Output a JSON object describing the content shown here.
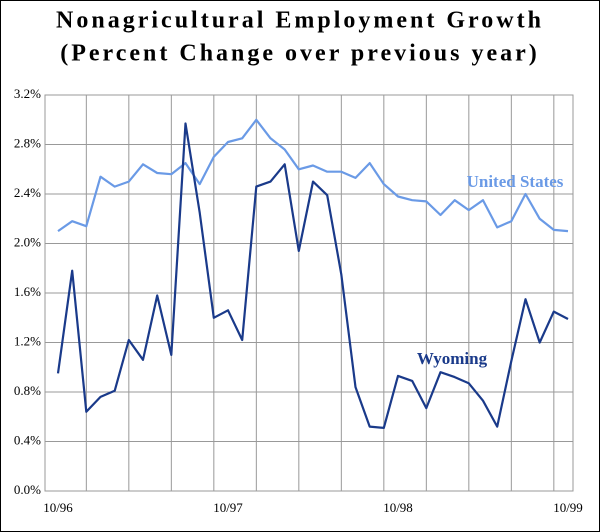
{
  "chart_data": {
    "type": "line",
    "title": "Nonagricultural Employment Growth",
    "subtitle": "(Percent Change over previous year)",
    "categories": [
      "10/96",
      null,
      null,
      null,
      null,
      null,
      null,
      null,
      null,
      null,
      null,
      null,
      "10/97",
      null,
      null,
      null,
      null,
      null,
      null,
      null,
      null,
      null,
      null,
      null,
      "10/98",
      null,
      null,
      null,
      null,
      null,
      null,
      null,
      null,
      null,
      null,
      null,
      "10/99"
    ],
    "series": [
      {
        "name": "United States",
        "color": "#6a9ae6",
        "values": [
          2.1,
          2.18,
          2.14,
          2.54,
          2.46,
          2.5,
          2.64,
          2.57,
          2.56,
          2.65,
          2.48,
          2.7,
          2.82,
          2.85,
          3.0,
          2.85,
          2.76,
          2.6,
          2.63,
          2.58,
          2.58,
          2.53,
          2.65,
          2.48,
          2.38,
          2.35,
          2.34,
          2.23,
          2.35,
          2.27,
          2.35,
          2.13,
          2.18,
          2.4,
          2.2,
          2.11,
          2.1
        ]
      },
      {
        "name": "Wyoming",
        "color": "#1a3a8a",
        "values": [
          0.95,
          1.78,
          0.64,
          0.76,
          0.81,
          1.22,
          1.06,
          1.58,
          1.1,
          2.97,
          2.25,
          1.4,
          1.46,
          1.22,
          2.46,
          2.5,
          2.64,
          1.94,
          2.5,
          2.39,
          1.75,
          0.84,
          0.52,
          0.51,
          0.93,
          0.89,
          0.67,
          0.96,
          0.92,
          0.87,
          0.73,
          0.52,
          1.05,
          1.55,
          1.2,
          1.45,
          1.39
        ]
      }
    ],
    "ylim": [
      0,
      3.2
    ],
    "yticks": [
      {
        "value": 0,
        "label": "0.0%"
      },
      {
        "value": 0.4,
        "label": "0.4%"
      },
      {
        "value": 0.8,
        "label": "0.8%"
      },
      {
        "value": 1.2,
        "label": "1.2%"
      },
      {
        "value": 1.6,
        "label": "1.6%"
      },
      {
        "value": 2.0,
        "label": "2.0%"
      },
      {
        "value": 2.4,
        "label": "2.4%"
      },
      {
        "value": 2.8,
        "label": "2.8%"
      },
      {
        "value": 3.2,
        "label": "3.2%"
      }
    ],
    "grid": true
  }
}
